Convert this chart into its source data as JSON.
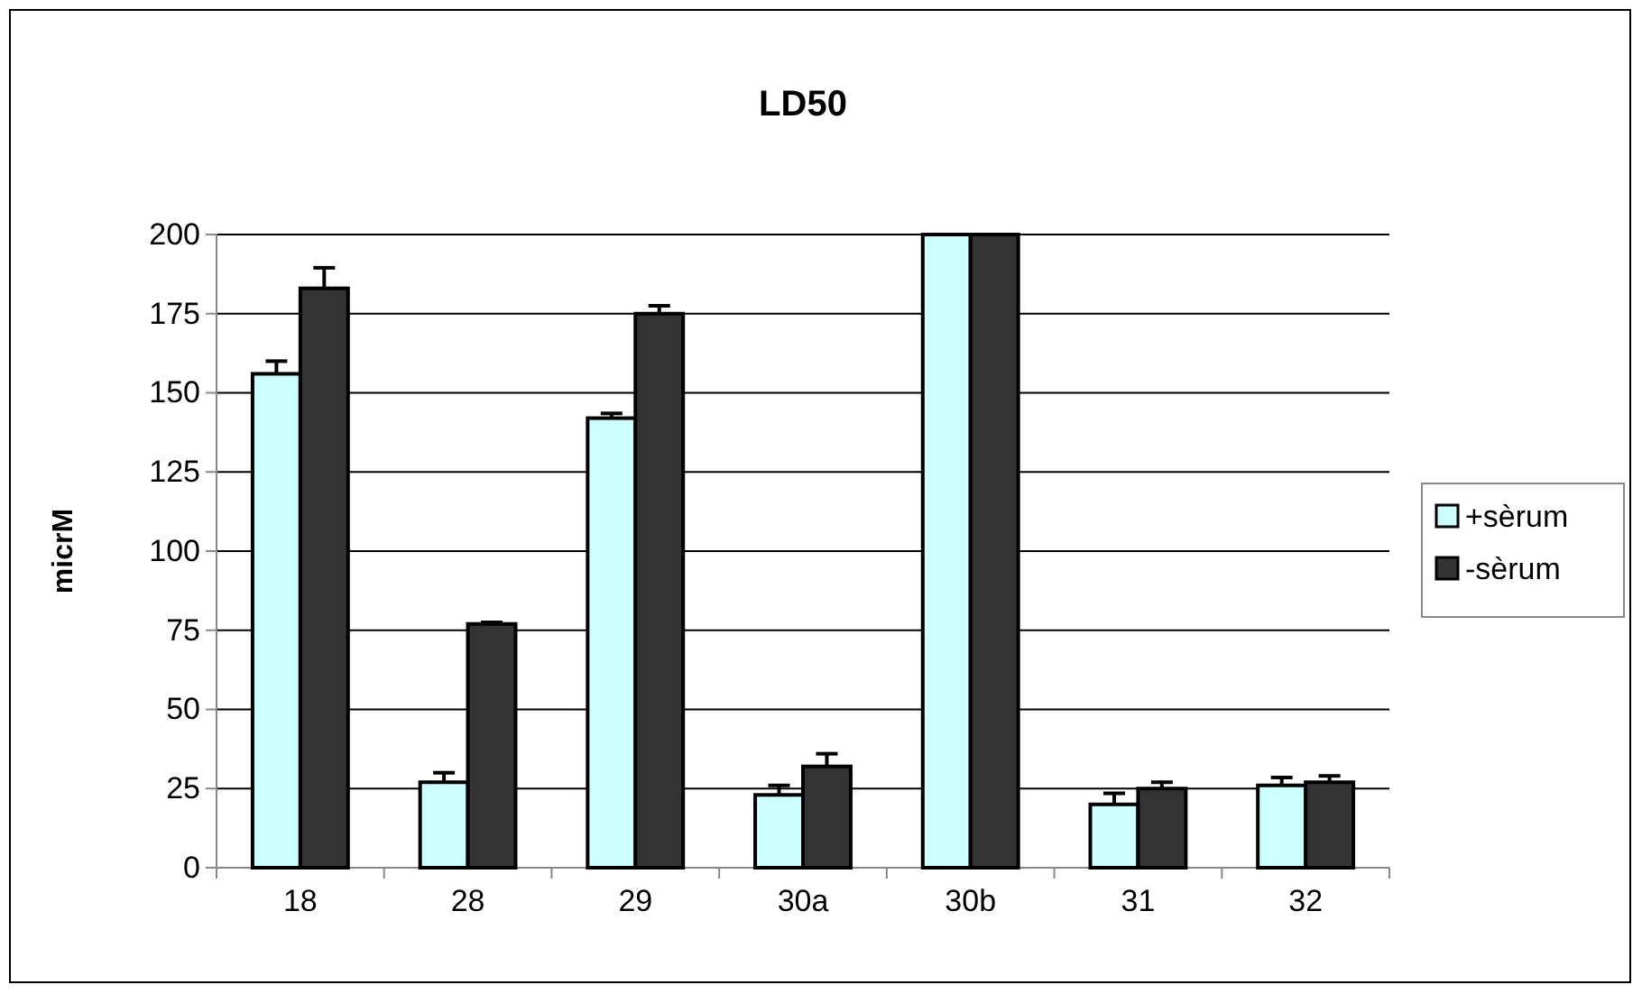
{
  "chart_data": {
    "type": "bar",
    "title": "LD50",
    "ylabel": "micrM",
    "categories": [
      "18",
      "28",
      "29",
      "30a",
      "30b",
      "31",
      "32"
    ],
    "series": [
      {
        "name": "+sèrum",
        "color": "#ccffff",
        "values": [
          156,
          27,
          142,
          23,
          200,
          20,
          26
        ],
        "errors": [
          [
            156,
            160
          ],
          [
            27,
            30
          ],
          [
            142,
            143.5
          ],
          [
            23,
            26
          ],
          null,
          [
            20,
            23.5
          ],
          [
            26,
            28.5
          ]
        ]
      },
      {
        "name": "-sèrum",
        "color": "#333333",
        "values": [
          183,
          77,
          175,
          32,
          200,
          25,
          27
        ],
        "errors": [
          [
            183,
            189.5
          ],
          [
            77,
            77.5
          ],
          [
            175,
            177.5
          ],
          [
            32,
            36
          ],
          null,
          [
            25,
            27
          ],
          [
            27,
            29
          ]
        ]
      }
    ],
    "ylim": [
      0,
      200
    ],
    "yticks": [
      0,
      25,
      50,
      75,
      100,
      125,
      150,
      175,
      200
    ],
    "grid": "y",
    "legend": "right"
  }
}
